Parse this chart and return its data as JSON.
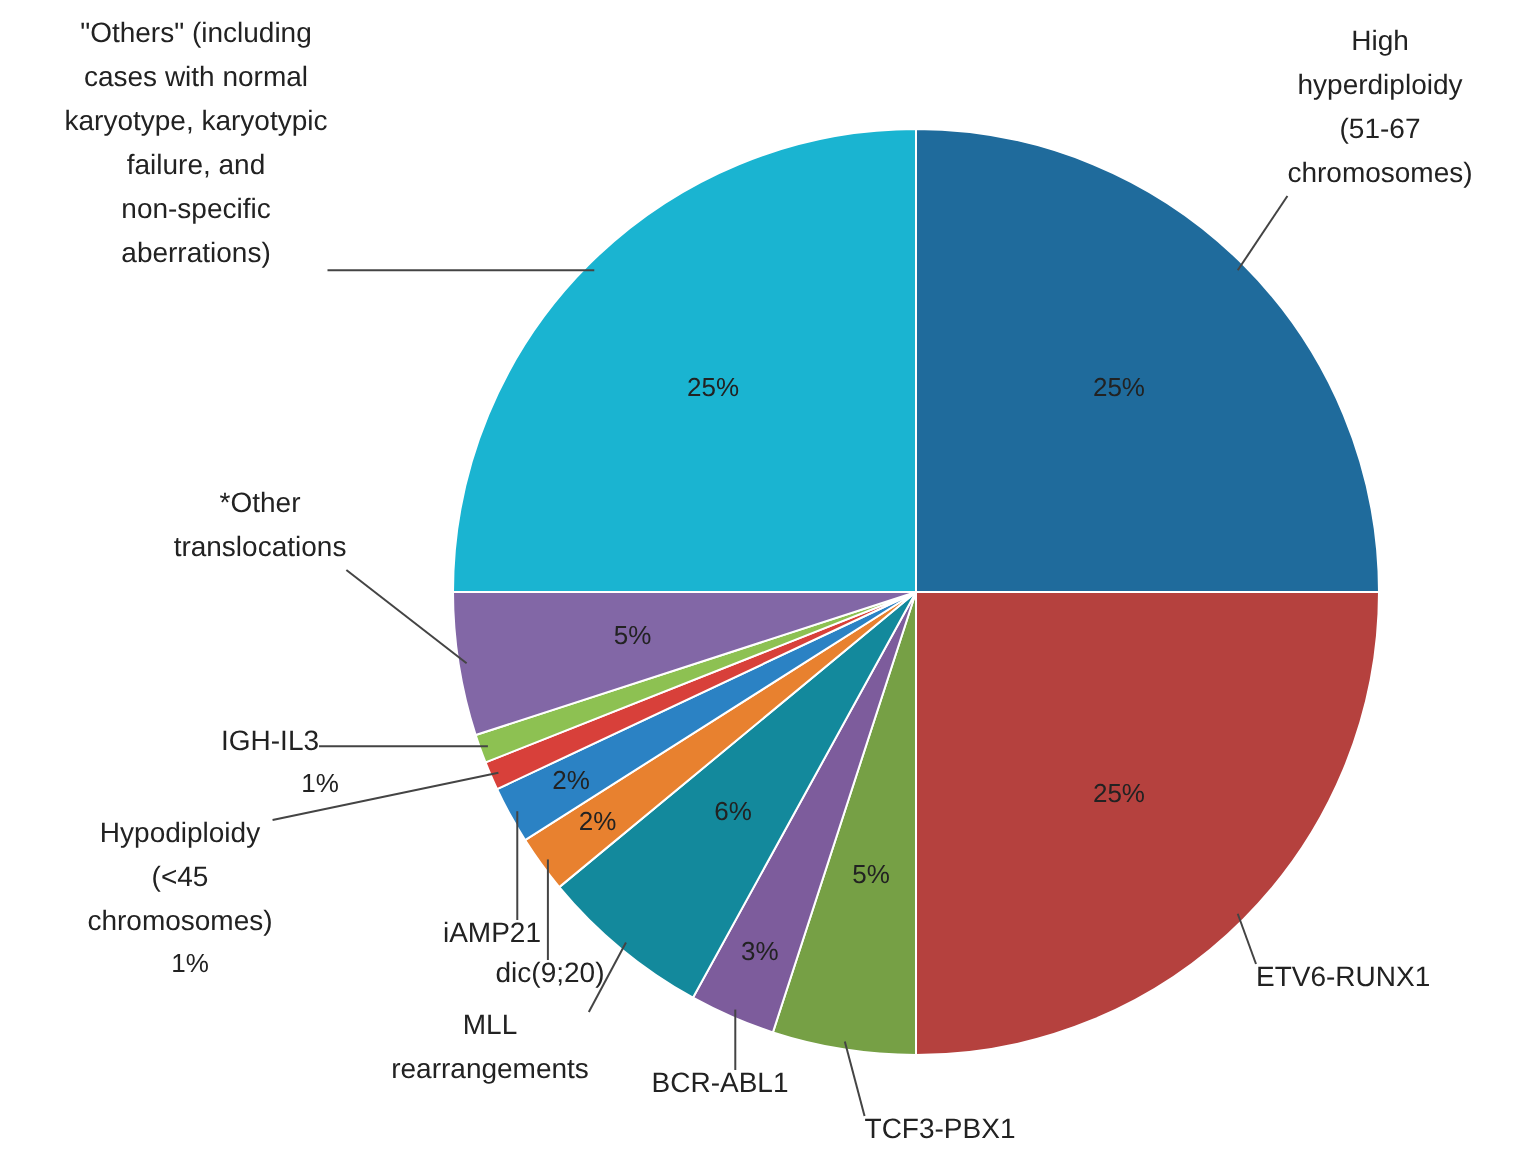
{
  "chart_data": {
    "type": "pie",
    "categories": [
      "High hyperdiploidy (51-67 chromosomes)",
      "ETV6-RUNX1",
      "TCF3-PBX1",
      "BCR-ABL1",
      "MLL rearrangements",
      "dic(9;20)",
      "iAMP21",
      "Hypodiploidy (<45 chromosomes)",
      "IGH-IL3",
      "*Other translocations",
      "\"Others\" (including cases with normal karyotype, karyotypic failure, and non-specific aberrations)"
    ],
    "values": [
      25,
      25,
      5,
      3,
      6,
      2,
      2,
      1,
      1,
      5,
      25
    ],
    "colors": [
      "#1f6b9c",
      "#b5413e",
      "#76a045",
      "#7d5c9c",
      "#13899c",
      "#e8812f",
      "#2b82c4",
      "#d8403a",
      "#8dc152",
      "#8267a6",
      "#1ab4d1"
    ],
    "value_labels": [
      "25%",
      "25%",
      "5%",
      "3%",
      "6%",
      "2%",
      "2%",
      "1%",
      "1%",
      "5%",
      "25%"
    ],
    "legend": false
  }
}
